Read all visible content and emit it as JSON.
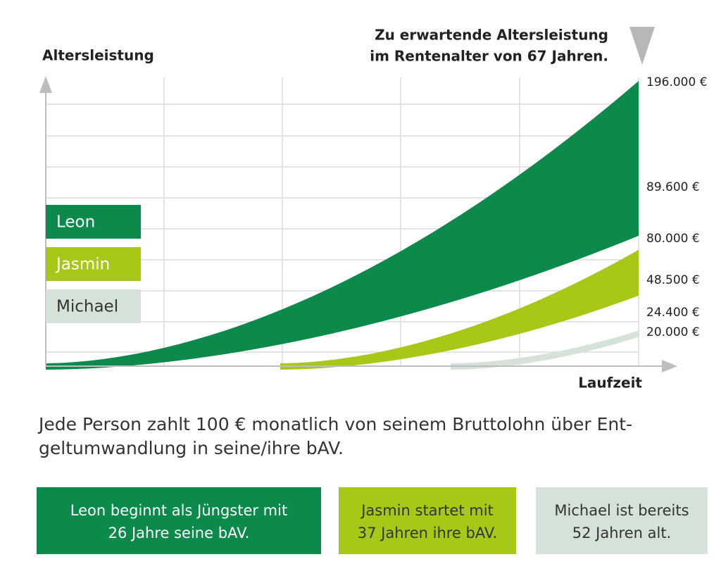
{
  "chart_data": {
    "type": "band",
    "y_label": "Altersleistung",
    "x_label": "Laufzeit",
    "annotation": [
      "Zu erwartende Altersleistung",
      "im Rentenalter von 67 Jahren."
    ],
    "ylim": [
      0,
      196000
    ],
    "series": [
      {
        "name": "Leon",
        "color": "#0b8a4b",
        "values": [
          89600,
          196000
        ],
        "value_labels": [
          "89.600 €",
          "196.000 €"
        ],
        "note": [
          "Leon beginnt als Jüngster mit",
          "26 Jahre seine bAV."
        ]
      },
      {
        "name": "Jasmin",
        "color": "#a8c817",
        "values": [
          48500,
          80000
        ],
        "value_labels": [
          "48.500 €",
          "80.000 €"
        ],
        "note": [
          "Jasmin startet mit",
          "37 Jahren ihre bAV."
        ]
      },
      {
        "name": "Michael",
        "color": "#d5e2d8",
        "values": [
          20000,
          24400
        ],
        "value_labels": [
          "20.000 €",
          "24.400 €"
        ],
        "note": [
          "Michael ist bereits",
          "52 Jahren alt."
        ]
      }
    ],
    "description": [
      "Jede Person zahlt 100 € monatlich von seinem Bruttolohn über Ent-",
      "geltumwandlung in seine/ihre bAV."
    ]
  }
}
